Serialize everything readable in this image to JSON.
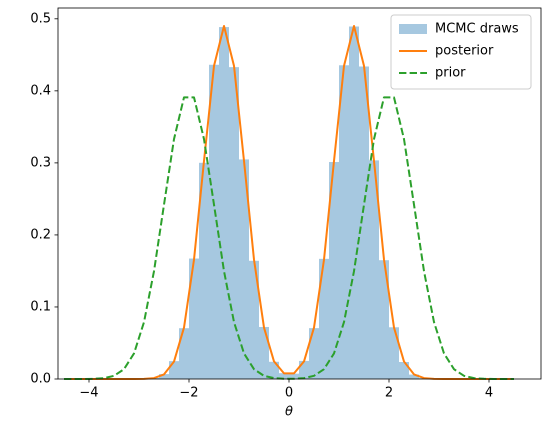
{
  "chart_data": {
    "type": "histogram",
    "xlabel": "θ",
    "xlim": [
      -4.62,
      5.04
    ],
    "ylim": [
      0,
      0.515
    ],
    "xticks": [
      {
        "value": -4,
        "label": "−4"
      },
      {
        "value": -2,
        "label": "−2"
      },
      0,
      2,
      4
    ],
    "yticks": [
      {
        "value": 0,
        "label": "0.0"
      },
      0.1,
      0.2,
      0.3,
      0.4,
      0.5
    ],
    "legend": "upper right",
    "histogram": {
      "name": "MCMC draws",
      "color": "#a6c8e0",
      "bins": [
        -3.0,
        -2.8,
        -2.6,
        -2.4,
        -2.2,
        -2.0,
        -1.8,
        -1.6,
        -1.4,
        -1.2,
        -1.0,
        -0.8,
        -0.6,
        -0.4,
        -0.2,
        0.0,
        0.2,
        0.4,
        0.6,
        0.8,
        1.0,
        1.2,
        1.4,
        1.6,
        1.8,
        2.0,
        2.2,
        2.4,
        2.6,
        2.8,
        3.0
      ],
      "counts": [
        0.0003,
        0.0015,
        0.0068,
        0.0248,
        0.0705,
        0.1672,
        0.3001,
        0.4362,
        0.4885,
        0.4329,
        0.3048,
        0.1641,
        0.0722,
        0.0239,
        0.0081,
        0.0074,
        0.0251,
        0.0706,
        0.1668,
        0.3012,
        0.4355,
        0.4893,
        0.4338,
        0.3035,
        0.1649,
        0.0718,
        0.0236,
        0.0061,
        0.0012,
        0.0002
      ]
    },
    "x": [
      -4.5,
      -4.3,
      -4.1,
      -3.9,
      -3.7,
      -3.5,
      -3.3,
      -3.1,
      -2.9,
      -2.7,
      -2.5,
      -2.3,
      -2.1,
      -1.9,
      -1.7,
      -1.5,
      -1.3,
      -1.1,
      -0.9,
      -0.7,
      -0.5,
      -0.3,
      -0.1,
      0.1,
      0.3,
      0.5,
      0.7,
      0.9,
      1.1,
      1.3,
      1.5,
      1.7,
      1.9,
      2.1,
      2.3,
      2.5,
      2.7,
      2.9,
      3.1,
      3.3,
      3.5,
      3.7,
      3.9,
      4.1,
      4.3,
      4.5
    ],
    "series": [
      {
        "name": "posterior",
        "color": "#ff7f0e",
        "linestyle": "solid",
        "values": [
          0,
          0,
          0,
          0,
          0,
          0,
          0,
          3e-05,
          0.0002,
          0.0013,
          0.0064,
          0.0242,
          0.0714,
          0.1657,
          0.3027,
          0.4347,
          0.49,
          0.4347,
          0.3027,
          0.1657,
          0.0714,
          0.0244,
          0.0078,
          0.0078,
          0.0244,
          0.0714,
          0.1657,
          0.3027,
          0.4347,
          0.49,
          0.4347,
          0.3027,
          0.1657,
          0.0714,
          0.0242,
          0.0064,
          0.0013,
          0.0002,
          3e-05,
          0,
          0,
          0,
          0,
          0,
          0,
          0
        ]
      },
      {
        "name": "prior",
        "color": "#2ca02c",
        "linestyle": "dashed",
        "values": [
          0,
          1e-05,
          6e-05,
          0.00029,
          0.0012,
          0.0044,
          0.0136,
          0.0355,
          0.079,
          0.1497,
          0.242,
          0.333,
          0.391,
          0.391,
          0.333,
          0.242,
          0.1497,
          0.079,
          0.0355,
          0.0136,
          0.0044,
          0.0012,
          0.00035,
          0.00035,
          0.0012,
          0.0044,
          0.0136,
          0.0355,
          0.079,
          0.1497,
          0.242,
          0.333,
          0.391,
          0.391,
          0.333,
          0.242,
          0.1497,
          0.079,
          0.0355,
          0.0136,
          0.0044,
          0.0012,
          0.00029,
          6e-05,
          1e-05,
          0
        ]
      }
    ]
  }
}
